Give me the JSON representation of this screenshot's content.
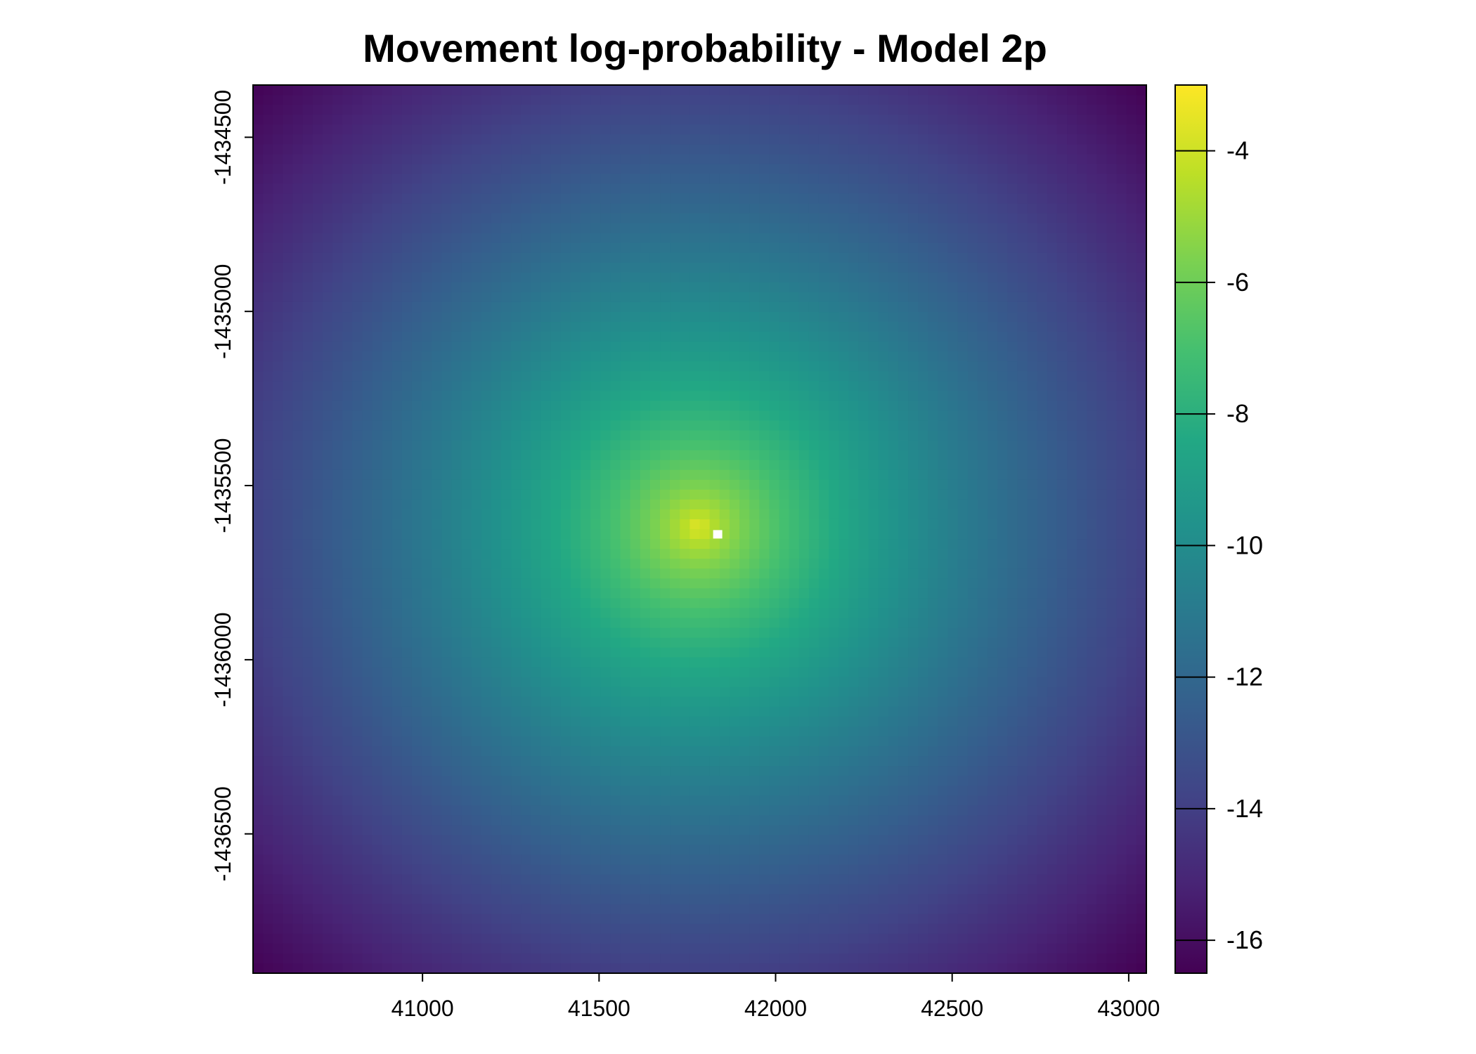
{
  "chart_data": {
    "type": "heatmap",
    "title": "Movement log-probability - Model 2p",
    "xlabel": "",
    "ylabel": "",
    "xlim": [
      40520,
      43050
    ],
    "ylim": [
      -1436900,
      -1434350
    ],
    "x_ticks": [
      41000,
      41500,
      42000,
      42500,
      43000
    ],
    "x_tick_labels": [
      "41000",
      "41500",
      "42000",
      "42500",
      "43000"
    ],
    "y_ticks": [
      -1434500,
      -1435000,
      -1435500,
      -1436000,
      -1436500
    ],
    "y_tick_labels": [
      "-1434500",
      "-1435000",
      "-1435500",
      "-1436000",
      "-1436500"
    ],
    "grid": false,
    "colormap": "viridis",
    "value_range": [
      -16.5,
      -3.0
    ],
    "colorbar_ticks": [
      -4,
      -6,
      -8,
      -10,
      -12,
      -14,
      -16
    ],
    "colorbar_tick_labels": [
      "-4",
      "-6",
      "-8",
      "-10",
      "-12",
      "-14",
      "-16"
    ],
    "peak": {
      "x": 41780,
      "y": -1435620,
      "value": -3.2
    },
    "missing_cell": {
      "x": 41835,
      "y": -1435640,
      "color": "#ffffff"
    },
    "edge_value_at_corners": -16.5
  }
}
